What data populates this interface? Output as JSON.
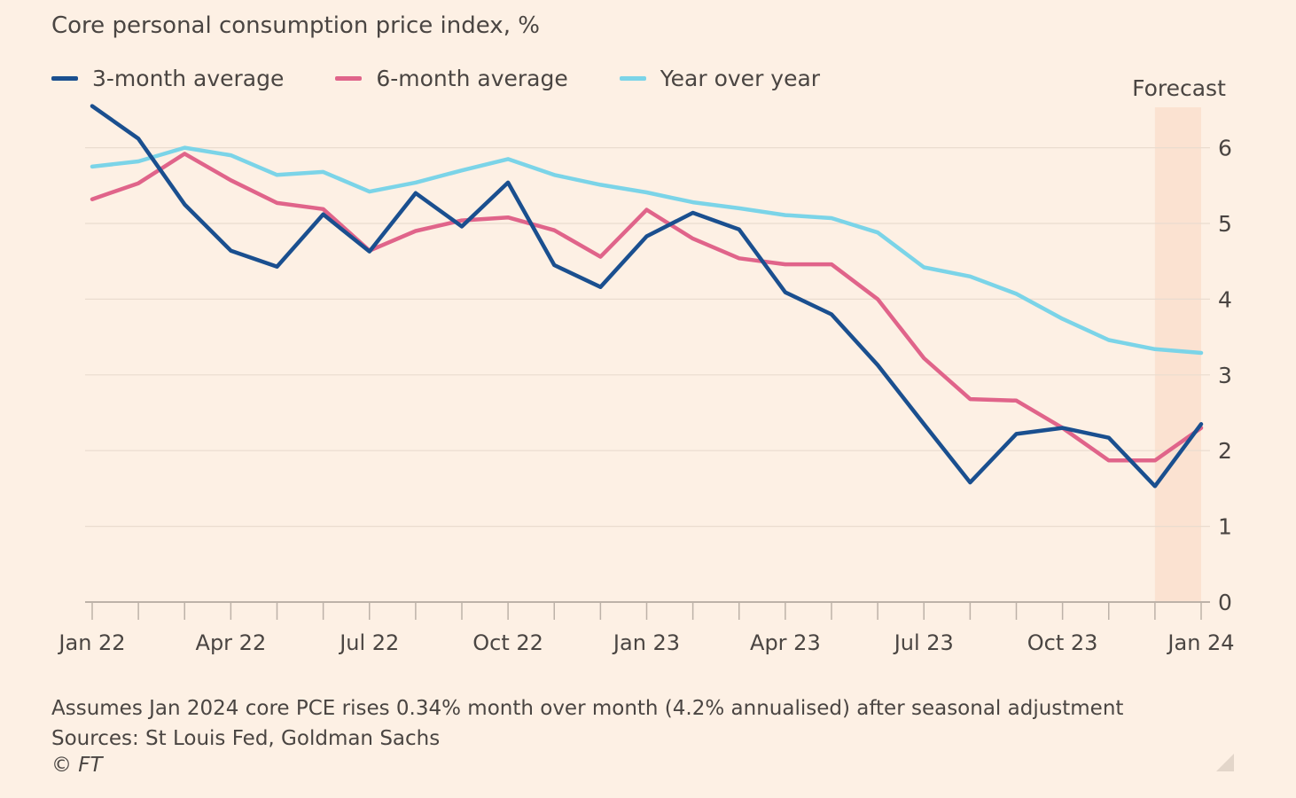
{
  "title": "Core personal consumption price index, %",
  "forecast_label": "Forecast",
  "footer": {
    "note": "Assumes Jan 2024 core PCE rises 0.34% month over month (4.2% annualised) after seasonal adjustment",
    "sources": "Sources: St Louis Fed, Goldman Sachs",
    "copyright": "© FT"
  },
  "colors": {
    "background": "#FDF0E4",
    "forecast_band": "#FBE2D1",
    "three_month": "#1A4F8F",
    "six_month": "#E0648A",
    "year_over_year": "#7BD4E8",
    "grid": "#EADCCF",
    "axis": "#BDB2A8"
  },
  "chart_data": {
    "type": "line",
    "title": "Core personal consumption price index, %",
    "xlabel": "",
    "ylabel": "%",
    "ylim": [
      0,
      6.5
    ],
    "yticks": [
      0,
      1,
      2,
      3,
      4,
      5,
      6
    ],
    "grid": true,
    "y_axis_position": "right",
    "legend_position": "top-left",
    "x": [
      "Jan 22",
      "Feb 22",
      "Mar 22",
      "Apr 22",
      "May 22",
      "Jun 22",
      "Jul 22",
      "Aug 22",
      "Sep 22",
      "Oct 22",
      "Nov 22",
      "Dec 22",
      "Jan 23",
      "Feb 23",
      "Mar 23",
      "Apr 23",
      "May 23",
      "Jun 23",
      "Jul 23",
      "Aug 23",
      "Sep 23",
      "Oct 23",
      "Nov 23",
      "Dec 23",
      "Jan 24"
    ],
    "xtick_labels": [
      "Jan 22",
      "Apr 22",
      "Jul 22",
      "Oct 22",
      "Jan 23",
      "Apr 23",
      "Jul 23",
      "Oct 23",
      "Jan 24"
    ],
    "forecast_range": [
      "Dec 23",
      "Jan 24"
    ],
    "series": [
      {
        "name": "3-month average",
        "color": "#1A4F8F",
        "values": [
          6.55,
          6.12,
          5.25,
          4.64,
          4.43,
          5.12,
          4.63,
          5.4,
          4.96,
          5.54,
          4.45,
          4.16,
          4.83,
          5.14,
          4.92,
          4.09,
          3.8,
          3.13,
          2.35,
          1.58,
          2.22,
          2.3,
          2.17,
          1.53,
          2.35
        ]
      },
      {
        "name": "6-month average",
        "color": "#E0648A",
        "values": [
          5.32,
          5.53,
          5.92,
          5.57,
          5.27,
          5.19,
          4.64,
          4.9,
          5.04,
          5.08,
          4.91,
          4.56,
          5.18,
          4.8,
          4.54,
          4.46,
          4.46,
          4.0,
          3.22,
          2.68,
          2.66,
          2.3,
          1.87,
          1.87,
          2.3
        ]
      },
      {
        "name": "Year over year",
        "color": "#7BD4E8",
        "values": [
          5.75,
          5.82,
          6.0,
          5.9,
          5.64,
          5.68,
          5.42,
          5.54,
          5.7,
          5.85,
          5.64,
          5.51,
          5.41,
          5.28,
          5.2,
          5.11,
          5.07,
          4.88,
          4.42,
          4.3,
          4.07,
          3.74,
          3.46,
          3.34,
          3.29
        ]
      }
    ]
  }
}
